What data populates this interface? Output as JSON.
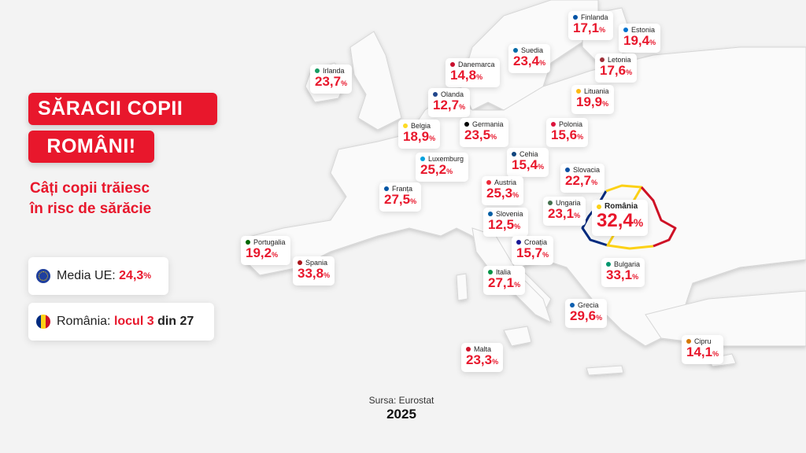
{
  "title": {
    "line1": "SĂRACII COPII",
    "line2": "ROMÂNI!"
  },
  "subtitle": {
    "line1": "Câți copii trăiesc",
    "line2": "în risc de sărăcie"
  },
  "eu_card": {
    "label": "Media UE:",
    "value": "24,3",
    "unit": "%"
  },
  "ro_card": {
    "label": "România:",
    "place": "locul 3",
    "suffix": "din 27"
  },
  "colors": {
    "accent": "#e8172c",
    "ro_blue": "#002b7f",
    "ro_yellow": "#fcd116",
    "ro_red": "#ce1126"
  },
  "countries": [
    {
      "name": "Finlanda",
      "value": "17,1",
      "flag": "#0053a5"
    },
    {
      "name": "Estonia",
      "value": "19,4",
      "flag": "#0072ce"
    },
    {
      "name": "Suedia",
      "value": "23,4",
      "flag": "#006aa7"
    },
    {
      "name": "Danemarca",
      "value": "14,8",
      "flag": "#c8102e"
    },
    {
      "name": "Letonia",
      "value": "17,6",
      "flag": "#9e3039"
    },
    {
      "name": "Irlanda",
      "value": "23,7",
      "flag": "#169b62"
    },
    {
      "name": "Olanda",
      "value": "12,7",
      "flag": "#21468b"
    },
    {
      "name": "Lituania",
      "value": "19,9",
      "flag": "#fdb913"
    },
    {
      "name": "Belgia",
      "value": "18,9",
      "flag": "#fdda24"
    },
    {
      "name": "Germania",
      "value": "23,5",
      "flag": "#000000"
    },
    {
      "name": "Polonia",
      "value": "15,6",
      "flag": "#dc143c"
    },
    {
      "name": "Luxemburg",
      "value": "25,2",
      "flag": "#00a1de"
    },
    {
      "name": "Cehia",
      "value": "15,4",
      "flag": "#11457e"
    },
    {
      "name": "Slovacia",
      "value": "22,7",
      "flag": "#0b4ea2"
    },
    {
      "name": "Franța",
      "value": "27,5",
      "flag": "#0055a4"
    },
    {
      "name": "Austria",
      "value": "25,3",
      "flag": "#ed2939"
    },
    {
      "name": "Ungaria",
      "value": "23,1",
      "flag": "#436f4d"
    },
    {
      "name": "România",
      "value": "32,4",
      "flag": "#fcd116"
    },
    {
      "name": "Slovenia",
      "value": "12,5",
      "flag": "#005da4"
    },
    {
      "name": "Portugalia",
      "value": "19,2",
      "flag": "#006600"
    },
    {
      "name": "Spania",
      "value": "33,8",
      "flag": "#aa151b"
    },
    {
      "name": "Croația",
      "value": "15,7",
      "flag": "#171796"
    },
    {
      "name": "Bulgaria",
      "value": "33,1",
      "flag": "#00966e"
    },
    {
      "name": "Italia",
      "value": "27,1",
      "flag": "#009246"
    },
    {
      "name": "Grecia",
      "value": "29,6",
      "flag": "#0d5eaf"
    },
    {
      "name": "Cipru",
      "value": "14,1",
      "flag": "#d57800"
    },
    {
      "name": "Malta",
      "value": "23,3",
      "flag": "#cf142b"
    }
  ],
  "unit": "%",
  "source": "Sursa: Eurostat",
  "year": "2025"
}
